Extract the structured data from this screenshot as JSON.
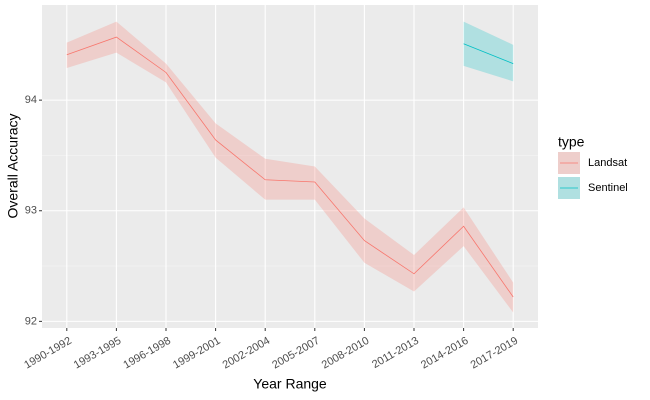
{
  "chart_data": {
    "type": "line",
    "x_label": "Year Range",
    "y_label": "Overall Accuracy",
    "legend_title": "type",
    "categories": [
      "1990-1992",
      "1993-1995",
      "1996-1998",
      "1999-2001",
      "2002-2004",
      "2005-2007",
      "2008-2010",
      "2011-2013",
      "2014-2016",
      "2017-2019"
    ],
    "series": [
      {
        "name": "Landsat",
        "color": "#F8766D",
        "values": [
          94.41,
          94.57,
          94.25,
          93.64,
          93.28,
          93.26,
          92.73,
          92.43,
          92.86,
          92.22
        ],
        "lower": [
          94.29,
          94.43,
          94.16,
          93.48,
          93.1,
          93.1,
          92.53,
          92.27,
          92.68,
          92.08
        ],
        "upper": [
          94.52,
          94.71,
          94.33,
          93.79,
          93.47,
          93.4,
          92.93,
          92.6,
          93.03,
          92.35
        ]
      },
      {
        "name": "Sentinel",
        "color": "#00BFC4",
        "values": [
          null,
          null,
          null,
          null,
          null,
          null,
          null,
          null,
          94.51,
          94.33
        ],
        "lower": [
          null,
          null,
          null,
          null,
          null,
          null,
          null,
          null,
          94.31,
          94.17
        ],
        "upper": [
          null,
          null,
          null,
          null,
          null,
          null,
          null,
          null,
          94.71,
          94.5
        ]
      }
    ],
    "ylim": [
      91.94,
      94.86
    ],
    "yticks": [
      92,
      93,
      94
    ],
    "grid": true,
    "legend": "right"
  }
}
